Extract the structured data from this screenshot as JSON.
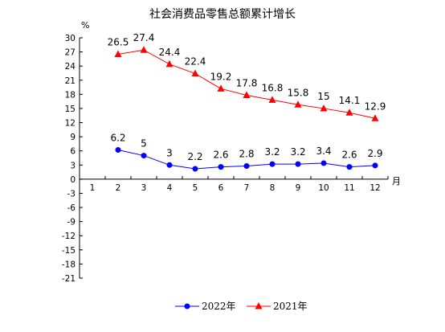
{
  "chart_data": {
    "type": "line",
    "title": "社会消费品零售总额累计增长",
    "y_unit": "%",
    "x_unit": "月",
    "categories": [
      "1",
      "2",
      "3",
      "4",
      "5",
      "6",
      "7",
      "8",
      "9",
      "10",
      "11",
      "12"
    ],
    "ylim": [
      -21,
      30
    ],
    "yticks": [
      30,
      27,
      24,
      21,
      18,
      15,
      12,
      9,
      6,
      3,
      0,
      -3,
      -6,
      -9,
      -12,
      -15,
      -18,
      -21
    ],
    "grid": false,
    "legend_position": "bottom",
    "series": [
      {
        "name": "2022年",
        "color": "#0000ff",
        "marker": "circle",
        "x": [
          "2",
          "3",
          "4",
          "5",
          "6",
          "7",
          "8",
          "9",
          "10",
          "11",
          "12"
        ],
        "values": [
          6.2,
          5,
          3,
          2.2,
          2.6,
          2.8,
          3.2,
          3.2,
          3.4,
          2.6,
          2.9
        ]
      },
      {
        "name": "2021年",
        "color": "#ff0000",
        "marker": "triangle",
        "x": [
          "2",
          "3",
          "4",
          "5",
          "6",
          "7",
          "8",
          "9",
          "10",
          "11",
          "12"
        ],
        "values": [
          26.5,
          27.4,
          24.4,
          22.4,
          19.2,
          17.8,
          16.8,
          15.8,
          15,
          14.1,
          12.9
        ]
      }
    ]
  }
}
